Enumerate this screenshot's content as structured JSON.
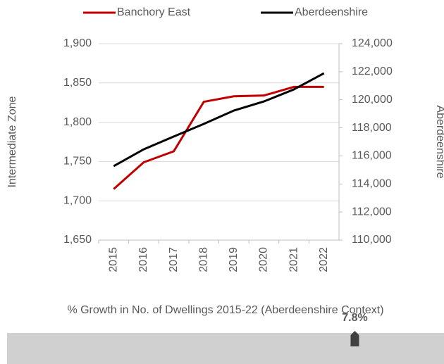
{
  "chart_data": [
    {
      "type": "line",
      "categories": [
        "2015",
        "2016",
        "2017",
        "2018",
        "2019",
        "2020",
        "2021",
        "2022"
      ],
      "series": [
        {
          "name": "Banchory East",
          "color": "#c00000",
          "values": [
            1715,
            1749,
            1763,
            1826,
            1833,
            1834,
            1845,
            1845
          ]
        },
        {
          "name": "Aberdeenshire",
          "color": "#000000",
          "axis": "y2",
          "values": [
            115270,
            116470,
            117380,
            118280,
            119230,
            119880,
            120740,
            121890
          ]
        }
      ],
      "ylabel": "Intermediate Zone",
      "y2label": "Aberdeenshire",
      "ylim": [
        1650,
        1900
      ],
      "yticks": [
        {
          "value": 1650,
          "label": "1,650"
        },
        {
          "value": 1700,
          "label": "1,700"
        },
        {
          "value": 1750,
          "label": "1,750"
        },
        {
          "value": 1800,
          "label": "1,800"
        },
        {
          "value": 1850,
          "label": "1,850"
        },
        {
          "value": 1900,
          "label": "1,900"
        }
      ],
      "y2lim": [
        110000,
        124000
      ],
      "y2ticks": [
        {
          "value": 110000,
          "label": "110,000"
        },
        {
          "value": 112000,
          "label": "112,000"
        },
        {
          "value": 114000,
          "label": "114,000"
        },
        {
          "value": 116000,
          "label": "116,000"
        },
        {
          "value": 118000,
          "label": "118,000"
        },
        {
          "value": 120000,
          "label": "120,000"
        },
        {
          "value": 122000,
          "label": "122,000"
        },
        {
          "value": 124000,
          "label": "124,000"
        }
      ],
      "grid": true,
      "legend": "top"
    },
    {
      "type": "gauge",
      "title": "% Growth in No. of Dwellings 2015-22 (Aberdeenshire Context)",
      "values": [
        7.8
      ],
      "value_labels": [
        "7.8%"
      ],
      "xlim": [
        0,
        9.8
      ],
      "color": "#d0d0d0",
      "marker_color": "#404040"
    }
  ]
}
